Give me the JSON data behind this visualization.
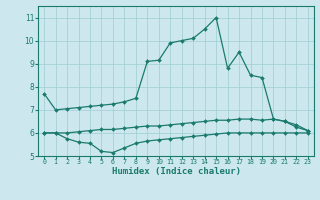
{
  "x": [
    0,
    1,
    2,
    3,
    4,
    5,
    6,
    7,
    8,
    9,
    10,
    11,
    12,
    13,
    14,
    15,
    16,
    17,
    18,
    19,
    20,
    21,
    22,
    23
  ],
  "line_top": [
    7.7,
    7.0,
    7.05,
    7.1,
    7.15,
    7.2,
    7.25,
    7.35,
    7.5,
    9.1,
    9.15,
    9.9,
    10.0,
    10.1,
    10.5,
    11.0,
    8.8,
    9.5,
    8.5,
    8.4,
    6.6,
    6.5,
    6.25,
    6.1
  ],
  "line_mid": [
    6.0,
    6.0,
    6.0,
    6.05,
    6.1,
    6.15,
    6.15,
    6.2,
    6.25,
    6.3,
    6.3,
    6.35,
    6.4,
    6.45,
    6.5,
    6.55,
    6.55,
    6.6,
    6.6,
    6.55,
    6.6,
    6.5,
    6.35,
    6.1
  ],
  "line_bot": [
    6.0,
    6.0,
    5.75,
    5.6,
    5.55,
    5.2,
    5.15,
    5.35,
    5.55,
    5.65,
    5.7,
    5.75,
    5.8,
    5.85,
    5.9,
    5.95,
    6.0,
    6.0,
    6.0,
    6.0,
    6.0,
    6.0,
    6.0,
    6.0
  ],
  "color": "#1a7a6e",
  "bg_color": "#cce8ee",
  "grid_color": "#9ecdd4",
  "ylim": [
    5.0,
    11.5
  ],
  "yticks": [
    5,
    6,
    7,
    8,
    9,
    10,
    11
  ],
  "xlabel": "Humidex (Indice chaleur)"
}
